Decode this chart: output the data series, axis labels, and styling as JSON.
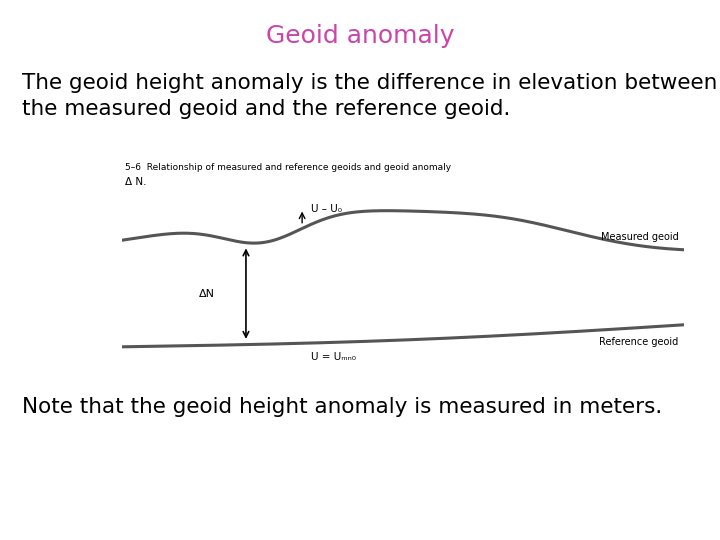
{
  "title": "Geoid anomaly",
  "title_color": "#cc44aa",
  "title_fontsize": 18,
  "body_text1": "The geoid height anomaly is the difference in elevation between\nthe measured geoid and the reference geoid.",
  "body_text1_fontsize": 15.5,
  "body_text2": "Note that the geoid height anomaly is measured in meters.",
  "body_text2_fontsize": 15.5,
  "bg_color": "#ffffff",
  "diagram_bg_color": "#e8f4f8",
  "fig_caption": "5–6  Relationship of measured and reference geoids and geoid anomaly",
  "fig_delta_n": "Δ N.",
  "label_u_minus_u0": "U – U₀",
  "label_delta_n": "ΔN",
  "label_u_eq": "U = Uₘₙ₀",
  "label_measured": "Measured geoid",
  "label_reference": "Reference geoid"
}
